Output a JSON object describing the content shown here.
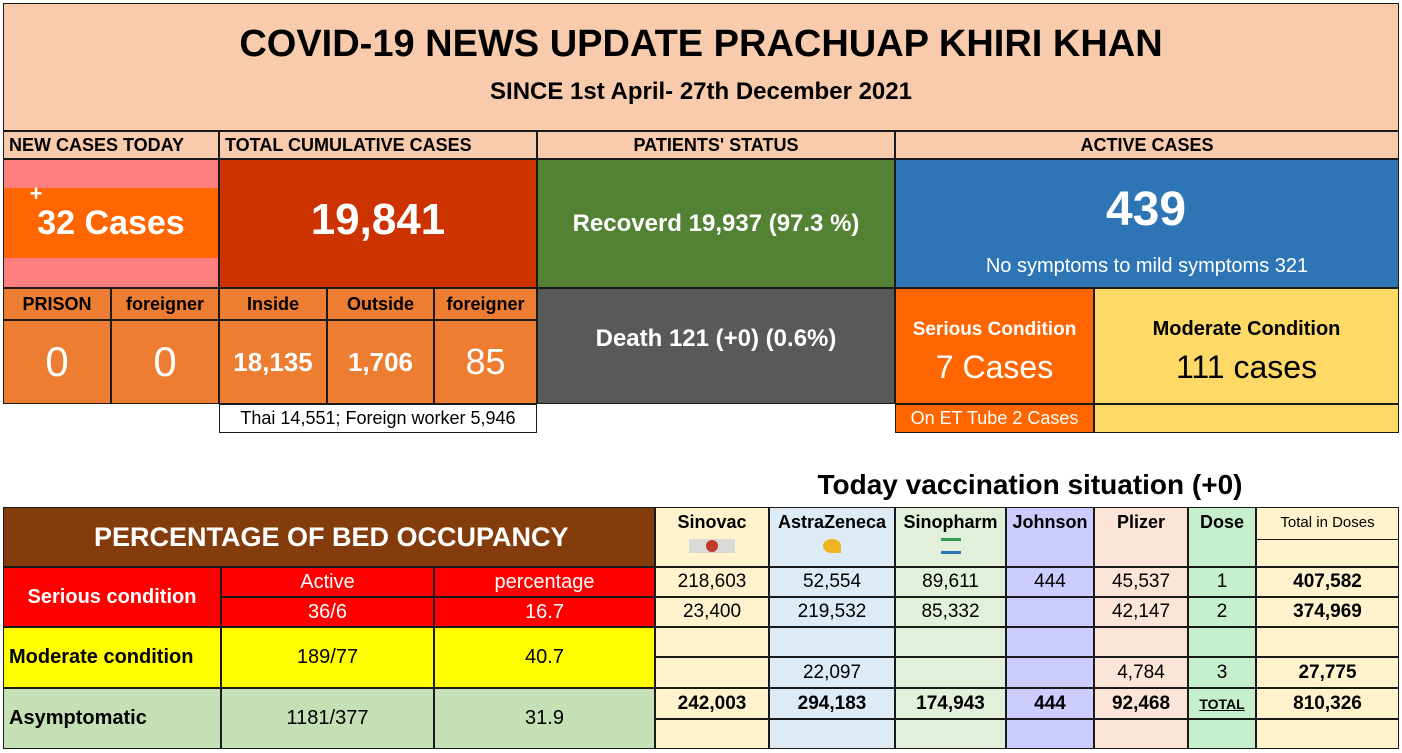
{
  "header": {
    "title": "COVID-19 NEWS UPDATE PRACHUAP KHIRI KHAN",
    "subtitle": "SINCE 1st April- 27th December 2021"
  },
  "new_cases": {
    "label": "NEW CASES TODAY",
    "plus": "+",
    "value": "32 Cases"
  },
  "cumulative": {
    "label": "TOTAL CUMULATIVE CASES",
    "value": "19,841"
  },
  "patients": {
    "label": "PATIENTS' STATUS",
    "recovered": "Recoverd 19,937 (97.3 %)",
    "death": "Death 121 (+0) (0.6%)"
  },
  "active": {
    "label": "ACTIVE CASES",
    "value": "439",
    "mild": "No symptoms to mild symptoms 321",
    "serious_label": "Serious Condition",
    "serious_value": "7 Cases",
    "moderate_label": "Moderate Condition",
    "moderate_value": "111 cases",
    "et_tube": "On ET Tube 2 Cases"
  },
  "breakdown": {
    "prison_label": "PRISON",
    "prison_value": "0",
    "foreigner_label": "foreigner",
    "foreigner_value": "0",
    "inside_label": "Inside",
    "inside_value": "18,135",
    "outside_label": "Outside",
    "outside_value": "1,706",
    "foreigner2_label": "foreigner",
    "foreigner2_value": "85",
    "note": "Thai 14,551; Foreign worker 5,946"
  },
  "beds": {
    "title": "PERCENTAGE OF BED OCCUPANCY",
    "active_label": "Active",
    "percentage_label": "percentage",
    "rows": [
      {
        "name": "Serious condition",
        "active": "36/6",
        "percentage": "16.7"
      },
      {
        "name": "Moderate condition",
        "active": "189/77",
        "percentage": "40.7"
      },
      {
        "name": "Asymptomatic",
        "active": "1181/377",
        "percentage": "31.9"
      }
    ]
  },
  "vaccination": {
    "title": "Today vaccination situation (+0)",
    "headers": [
      "Sinovac",
      "AstraZeneca",
      "Sinopharm",
      "Johnson",
      "Plizer",
      "Dose",
      "Total in Doses"
    ],
    "rows": [
      [
        "218,603",
        "52,554",
        "89,611",
        "444",
        "45,537",
        "1",
        "407,582"
      ],
      [
        "23,400",
        "219,532",
        "85,332",
        "",
        "42,147",
        "2",
        "374,969"
      ],
      [
        "",
        "",
        "",
        "",
        "",
        "",
        ""
      ],
      [
        "",
        "22,097",
        "",
        "",
        "4,784",
        "3",
        "27,775"
      ],
      [
        "242,003",
        "294,183",
        "174,943",
        "444",
        "92,468",
        "TOTAL",
        "810,326"
      ],
      [
        "",
        "",
        "",
        "",
        "",
        "",
        ""
      ]
    ]
  }
}
